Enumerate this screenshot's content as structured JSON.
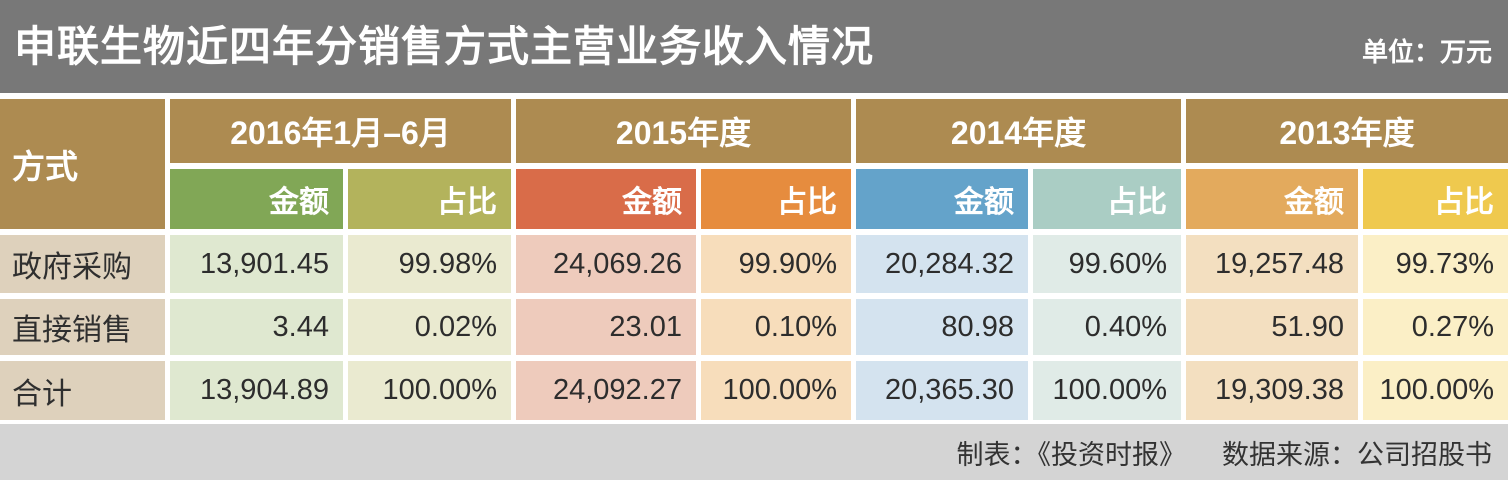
{
  "page": {
    "title": "申联生物近四年分销售方式主营业务收入情况",
    "unit_label": "单位：万元"
  },
  "table": {
    "method_header": "方式",
    "groups": [
      {
        "year": "2016年1月–6月",
        "amount": "金额",
        "share": "占比"
      },
      {
        "year": "2015年度",
        "amount": "金额",
        "share": "占比"
      },
      {
        "year": "2014年度",
        "amount": "金额",
        "share": "占比"
      },
      {
        "year": "2013年度",
        "amount": "金额",
        "share": "占比"
      }
    ],
    "rows": [
      {
        "label": "政府采购",
        "values": [
          "13,901.45",
          "99.98%",
          "24,069.26",
          "99.90%",
          "20,284.32",
          "99.60%",
          "19,257.48",
          "99.73%"
        ]
      },
      {
        "label": "直接销售",
        "values": [
          "3.44",
          "0.02%",
          "23.01",
          "0.10%",
          "80.98",
          "0.40%",
          "51.90",
          "0.27%"
        ]
      },
      {
        "label": "合计",
        "values": [
          "13,904.89",
          "100.00%",
          "24,092.27",
          "100.00%",
          "20,365.30",
          "100.00%",
          "19,309.38",
          "100.00%"
        ]
      }
    ]
  },
  "footer": {
    "credit": "制表：《投资时报》",
    "source": "数据来源：公司招股书"
  },
  "colors": {
    "title_bar": "#787878",
    "header_brown": "#ad8b51",
    "header_amount_2016": "#81a756",
    "header_share_2016": "#b3b35c",
    "header_amount_2015": "#d96c49",
    "header_share_2015": "#e68c3e",
    "header_amount_2014": "#64a3ca",
    "header_share_2014": "#aacdc4",
    "header_amount_2013": "#e3aa5d",
    "header_share_2013": "#efc94e",
    "row_label_bg": "#ded1bc",
    "cell_amount_2016": "#dfe8d0",
    "cell_share_2016": "#eaead0",
    "cell_amount_2015": "#eecbbc",
    "cell_share_2015": "#f7ddbb",
    "cell_amount_2014": "#d4e3ef",
    "cell_share_2014": "#e0ebe7",
    "cell_amount_2013": "#f3dfc0",
    "cell_share_2013": "#fbefc6",
    "footer_bar": "#d4d4d4"
  },
  "chart_data": {
    "type": "table",
    "title": "申联生物近四年分销售方式主营业务收入情况",
    "unit": "万元",
    "column_groups": [
      "2016年1月–6月",
      "2015年度",
      "2014年度",
      "2013年度"
    ],
    "sub_columns": [
      "金额",
      "占比"
    ],
    "row_header": "方式",
    "rows": [
      {
        "方式": "政府采购",
        "2016年1月–6月": {
          "金额": 13901.45,
          "占比": "99.98%"
        },
        "2015年度": {
          "金额": 24069.26,
          "占比": "99.90%"
        },
        "2014年度": {
          "金额": 20284.32,
          "占比": "99.60%"
        },
        "2013年度": {
          "金额": 19257.48,
          "占比": "99.73%"
        }
      },
      {
        "方式": "直接销售",
        "2016年1月–6月": {
          "金额": 3.44,
          "占比": "0.02%"
        },
        "2015年度": {
          "金额": 23.01,
          "占比": "0.10%"
        },
        "2014年度": {
          "金额": 80.98,
          "占比": "0.40%"
        },
        "2013年度": {
          "金额": 51.9,
          "占比": "0.27%"
        }
      },
      {
        "方式": "合计",
        "2016年1月–6月": {
          "金额": 13904.89,
          "占比": "100.00%"
        },
        "2015年度": {
          "金额": 24092.27,
          "占比": "100.00%"
        },
        "2014年度": {
          "金额": 20365.3,
          "占比": "100.00%"
        },
        "2013年度": {
          "金额": 19309.38,
          "占比": "100.00%"
        }
      }
    ]
  }
}
